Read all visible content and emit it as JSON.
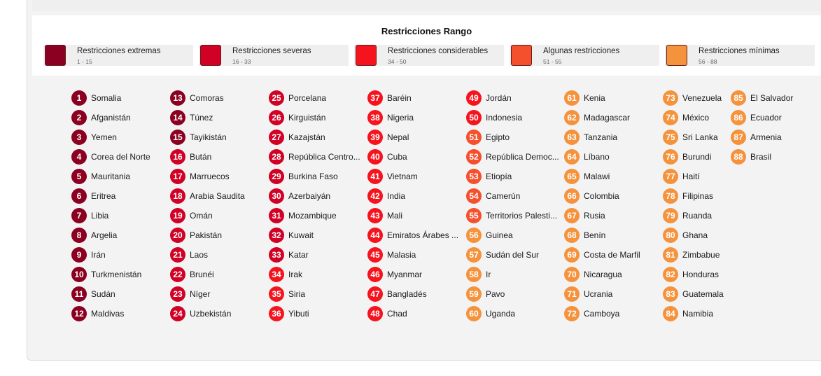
{
  "legend": {
    "title": "Restricciones Rango",
    "items": [
      {
        "label": "Restricciones extremas",
        "range": "1 - 15",
        "color": "#8b0020"
      },
      {
        "label": "Restricciones severas",
        "range": "16 - 33",
        "color": "#d10025"
      },
      {
        "label": "Restricciones considerables",
        "range": "34 - 50",
        "color": "#f5141e"
      },
      {
        "label": "Algunas restricciones",
        "range": "51 - 55",
        "color": "#f5502d"
      },
      {
        "label": "Restricciones mínimas",
        "range": "56 - 88",
        "color": "#f5923c"
      }
    ]
  },
  "countries": [
    {
      "rank": "1",
      "name": "Somalia",
      "tier": 0
    },
    {
      "rank": "2",
      "name": "Afganistán",
      "tier": 0
    },
    {
      "rank": "3",
      "name": "Yemen",
      "tier": 0
    },
    {
      "rank": "4",
      "name": "Corea del Norte",
      "tier": 0
    },
    {
      "rank": "5",
      "name": "Mauritania",
      "tier": 0
    },
    {
      "rank": "6",
      "name": "Eritrea",
      "tier": 0
    },
    {
      "rank": "7",
      "name": "Libia",
      "tier": 0
    },
    {
      "rank": "8",
      "name": "Argelia",
      "tier": 0
    },
    {
      "rank": "9",
      "name": "Irán",
      "tier": 0
    },
    {
      "rank": "10",
      "name": "Turkmenistán",
      "tier": 0
    },
    {
      "rank": "11",
      "name": "Sudán",
      "tier": 0
    },
    {
      "rank": "12",
      "name": "Maldivas",
      "tier": 0
    },
    {
      "rank": "13",
      "name": "Comoras",
      "tier": 0
    },
    {
      "rank": "14",
      "name": "Túnez",
      "tier": 0
    },
    {
      "rank": "15",
      "name": "Tayikistán",
      "tier": 0
    },
    {
      "rank": "16",
      "name": "Bután",
      "tier": 1
    },
    {
      "rank": "17",
      "name": "Marruecos",
      "tier": 1
    },
    {
      "rank": "18",
      "name": "Arabia Saudita",
      "tier": 1
    },
    {
      "rank": "19",
      "name": "Omán",
      "tier": 1
    },
    {
      "rank": "20",
      "name": "Pakistán",
      "tier": 1
    },
    {
      "rank": "21",
      "name": "Laos",
      "tier": 1
    },
    {
      "rank": "22",
      "name": "Brunéi",
      "tier": 1
    },
    {
      "rank": "23",
      "name": "Níger",
      "tier": 1
    },
    {
      "rank": "24",
      "name": "Uzbekistán",
      "tier": 1
    },
    {
      "rank": "25",
      "name": "Porcelana",
      "tier": 1
    },
    {
      "rank": "26",
      "name": "Kirguistán",
      "tier": 1
    },
    {
      "rank": "27",
      "name": "Kazajstán",
      "tier": 1
    },
    {
      "rank": "28",
      "name": "República Centro...",
      "tier": 1
    },
    {
      "rank": "29",
      "name": "Burkina Faso",
      "tier": 1
    },
    {
      "rank": "30",
      "name": "Azerbaiyán",
      "tier": 1
    },
    {
      "rank": "31",
      "name": "Mozambique",
      "tier": 1
    },
    {
      "rank": "32",
      "name": "Kuwait",
      "tier": 1
    },
    {
      "rank": "33",
      "name": "Katar",
      "tier": 1
    },
    {
      "rank": "34",
      "name": "Irak",
      "tier": 2
    },
    {
      "rank": "35",
      "name": "Siria",
      "tier": 2
    },
    {
      "rank": "36",
      "name": "Yibuti",
      "tier": 2
    },
    {
      "rank": "37",
      "name": "Baréin",
      "tier": 2
    },
    {
      "rank": "38",
      "name": "Nigeria",
      "tier": 2
    },
    {
      "rank": "39",
      "name": "Nepal",
      "tier": 2
    },
    {
      "rank": "40",
      "name": "Cuba",
      "tier": 2
    },
    {
      "rank": "41",
      "name": "Vietnam",
      "tier": 2
    },
    {
      "rank": "42",
      "name": "India",
      "tier": 2
    },
    {
      "rank": "43",
      "name": "Mali",
      "tier": 2
    },
    {
      "rank": "44",
      "name": "Emiratos Árabes ...",
      "tier": 2
    },
    {
      "rank": "45",
      "name": "Malasia",
      "tier": 2
    },
    {
      "rank": "46",
      "name": "Myanmar",
      "tier": 2
    },
    {
      "rank": "47",
      "name": "Bangladés",
      "tier": 2
    },
    {
      "rank": "48",
      "name": "Chad",
      "tier": 2
    },
    {
      "rank": "49",
      "name": "Jordán",
      "tier": 2
    },
    {
      "rank": "50",
      "name": "Indonesia",
      "tier": 2
    },
    {
      "rank": "51",
      "name": "Egipto",
      "tier": 3
    },
    {
      "rank": "52",
      "name": "República Democ...",
      "tier": 3
    },
    {
      "rank": "53",
      "name": "Etiopía",
      "tier": 3
    },
    {
      "rank": "54",
      "name": "Camerún",
      "tier": 3
    },
    {
      "rank": "55",
      "name": "Territorios Palesti...",
      "tier": 3
    },
    {
      "rank": "56",
      "name": "Guinea",
      "tier": 4
    },
    {
      "rank": "57",
      "name": "Sudán del Sur",
      "tier": 4
    },
    {
      "rank": "58",
      "name": "Ir",
      "tier": 4
    },
    {
      "rank": "59",
      "name": "Pavo",
      "tier": 4
    },
    {
      "rank": "60",
      "name": "Uganda",
      "tier": 4
    },
    {
      "rank": "61",
      "name": "Kenia",
      "tier": 4
    },
    {
      "rank": "62",
      "name": "Madagascar",
      "tier": 4
    },
    {
      "rank": "63",
      "name": "Tanzania",
      "tier": 4
    },
    {
      "rank": "64",
      "name": "Líbano",
      "tier": 4
    },
    {
      "rank": "65",
      "name": "Malawi",
      "tier": 4
    },
    {
      "rank": "66",
      "name": "Colombia",
      "tier": 4
    },
    {
      "rank": "67",
      "name": "Rusia",
      "tier": 4
    },
    {
      "rank": "68",
      "name": "Benín",
      "tier": 4
    },
    {
      "rank": "69",
      "name": "Costa de Marfil",
      "tier": 4
    },
    {
      "rank": "70",
      "name": "Nicaragua",
      "tier": 4
    },
    {
      "rank": "71",
      "name": "Ucrania",
      "tier": 4
    },
    {
      "rank": "72",
      "name": "Camboya",
      "tier": 4
    },
    {
      "rank": "73",
      "name": "Venezuela",
      "tier": 4
    },
    {
      "rank": "74",
      "name": "México",
      "tier": 4
    },
    {
      "rank": "75",
      "name": "Sri Lanka",
      "tier": 4
    },
    {
      "rank": "76",
      "name": "Burundi",
      "tier": 4
    },
    {
      "rank": "77",
      "name": "Haití",
      "tier": 4
    },
    {
      "rank": "78",
      "name": "Filipinas",
      "tier": 4
    },
    {
      "rank": "79",
      "name": "Ruanda",
      "tier": 4
    },
    {
      "rank": "80",
      "name": "Ghana",
      "tier": 4
    },
    {
      "rank": "81",
      "name": "Zimbabue",
      "tier": 4
    },
    {
      "rank": "82",
      "name": "Honduras",
      "tier": 4
    },
    {
      "rank": "83",
      "name": "Guatemala",
      "tier": 4
    },
    {
      "rank": "84",
      "name": "Namibia",
      "tier": 4
    },
    {
      "rank": "85",
      "name": "El Salvador",
      "tier": 4
    },
    {
      "rank": "86",
      "name": "Ecuador",
      "tier": 4
    },
    {
      "rank": "87",
      "name": "Armenia",
      "tier": 4
    },
    {
      "rank": "88",
      "name": "Brasil",
      "tier": 4
    }
  ]
}
